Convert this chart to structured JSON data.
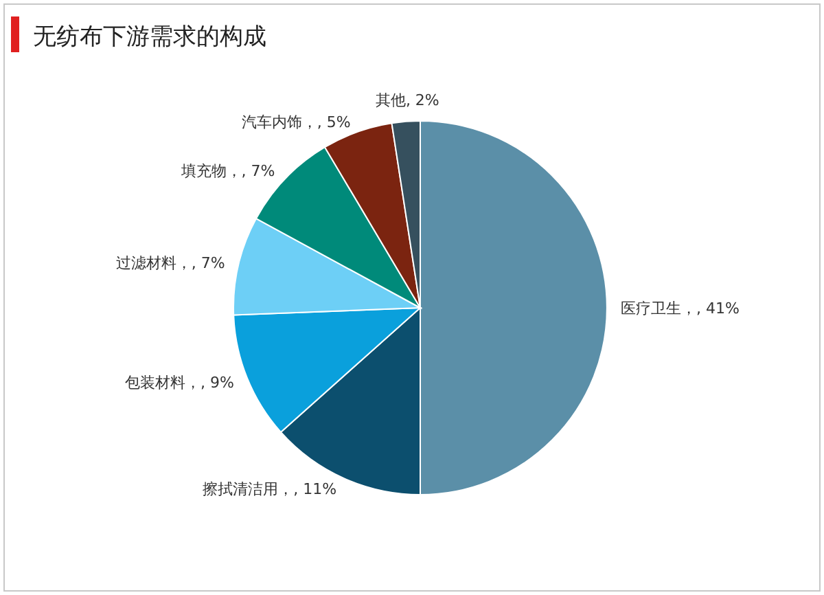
{
  "chart_data": {
    "type": "pie",
    "title": "无纺布下游需求的构成",
    "categories": [
      "医疗卫生",
      "擦拭清洁用",
      "包装材料",
      "过滤材料",
      "填充物",
      "汽车内饰",
      "其他"
    ],
    "values": [
      41,
      11,
      9,
      7,
      7,
      5,
      2
    ],
    "value_labels": [
      "，, 41%",
      "，, 11%",
      "，, 9%",
      "，, 7%",
      "，, 7%",
      "，, 5%",
      ", 2%"
    ],
    "colors": [
      "#5b8fa8",
      "#0c4f6e",
      "#0aa0dc",
      "#6dcff6",
      "#008a7a",
      "#7b2410",
      "#36505e"
    ]
  }
}
